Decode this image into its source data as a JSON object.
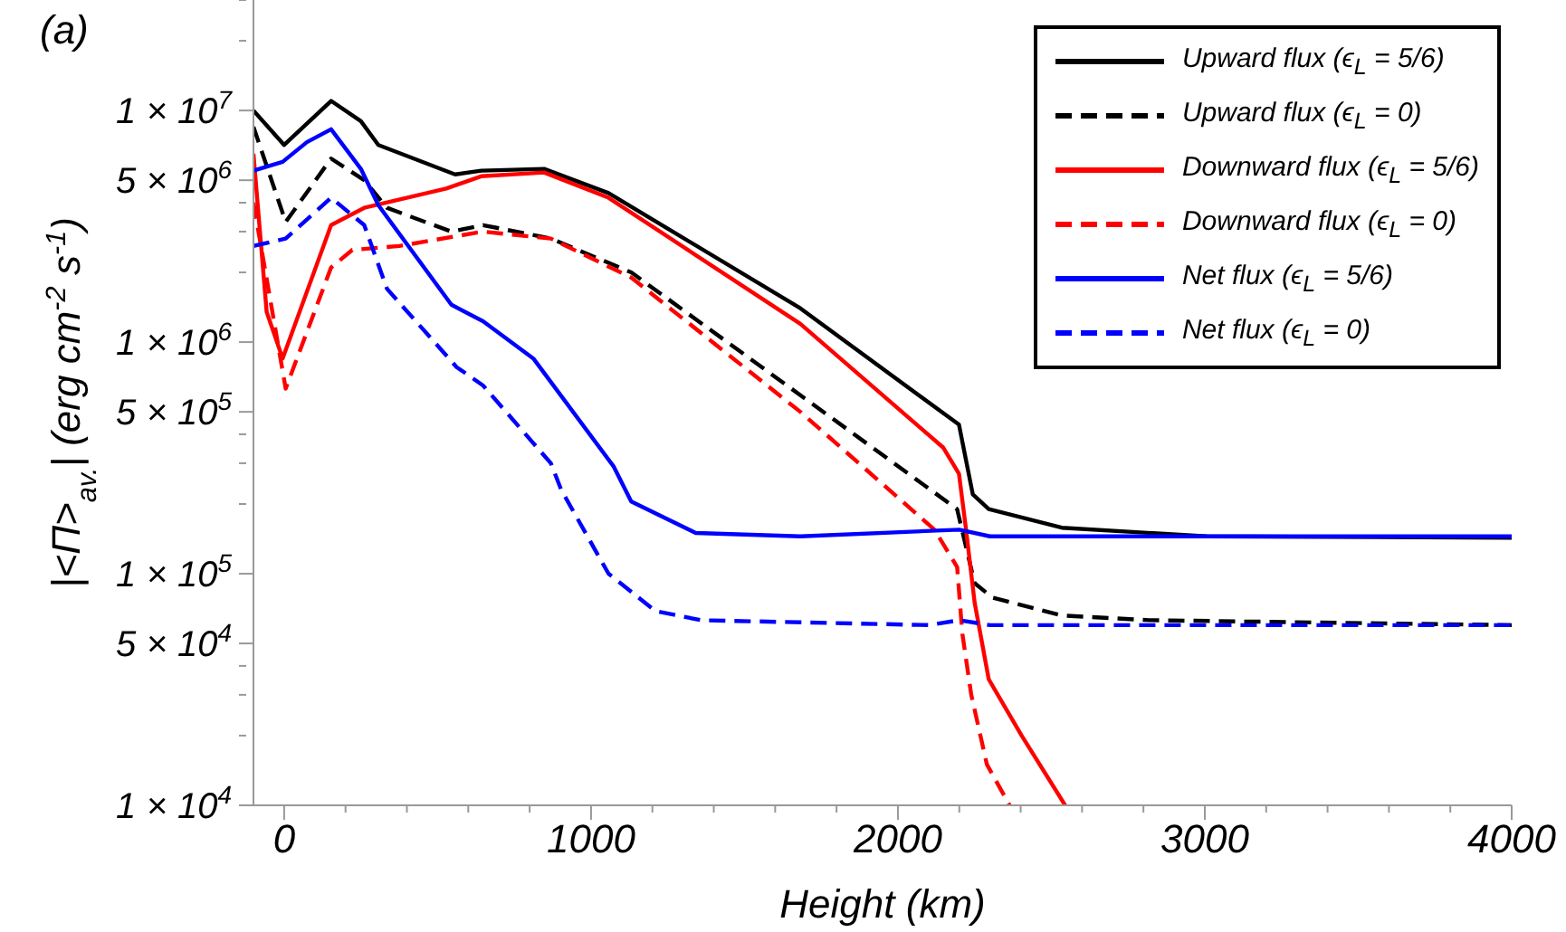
{
  "chart_data": {
    "type": "line",
    "title": "(a)",
    "xlabel": "Height (km)",
    "ylabel": "|<Π>$_{av.}$|  (erg cm$^{-2}$ s$^{-1}$)",
    "log": "y",
    "grid": false,
    "legend": "top right",
    "marker": "none",
    "xlim": [
      -100,
      4000
    ],
    "xticks": [
      0,
      {
        "value": 200,
        "label": null
      },
      {
        "value": 400,
        "label": null
      },
      {
        "value": 600,
        "label": null
      },
      {
        "value": 800,
        "label": null
      },
      1000,
      {
        "value": 1200,
        "label": null
      },
      {
        "value": 1400,
        "label": null
      },
      {
        "value": 1600,
        "label": null
      },
      {
        "value": 1800,
        "label": null
      },
      2000,
      {
        "value": 2200,
        "label": null
      },
      {
        "value": 2400,
        "label": null
      },
      {
        "value": 2600,
        "label": null
      },
      {
        "value": 2800,
        "label": null
      },
      3000,
      {
        "value": 3200,
        "label": null
      },
      {
        "value": 3400,
        "label": null
      },
      {
        "value": 3600,
        "label": null
      },
      {
        "value": 3800,
        "label": null
      },
      4000
    ],
    "ylim": [
      10000,
      30000000
    ],
    "yticks": [
      {
        "value": 10000,
        "label": "1 × 10$^{4}$"
      },
      {
        "value": 20000,
        "label": null
      },
      {
        "value": 30000,
        "label": null
      },
      {
        "value": 40000,
        "label": null
      },
      {
        "value": 50000,
        "label": "5 × 10$^{4}$"
      },
      {
        "value": 100000,
        "label": "1 × 10$^{5}$"
      },
      {
        "value": 200000,
        "label": null
      },
      {
        "value": 300000,
        "label": null
      },
      {
        "value": 400000,
        "label": null
      },
      {
        "value": 500000,
        "label": "5 × 10$^{5}$"
      },
      {
        "value": 1000000,
        "label": "1 × 10$^{6}$"
      },
      {
        "value": 2000000,
        "label": null
      },
      {
        "value": 3000000,
        "label": null
      },
      {
        "value": 4000000,
        "label": null
      },
      {
        "value": 5000000,
        "label": "5 × 10$^{6}$"
      },
      {
        "value": 10000000,
        "label": "1 × 10$^{7}$"
      },
      {
        "value": 20000000,
        "label": null
      },
      {
        "value": 30000000,
        "label": null
      }
    ],
    "series": [
      {
        "name": "Upward flux (ϵ$_{L}$ = 5/6)",
        "color": "#000000",
        "line_style": "solid",
        "x": [
          -100,
          0,
          153,
          250,
          307,
          557,
          642,
          847,
          1057,
          1682,
          2199,
          2244,
          2296,
          2534,
          3006,
          4000
        ],
        "values": [
          10000000,
          7100000,
          11000000,
          9000000,
          7100000,
          5300000,
          5500000,
          5600000,
          4400000,
          1400000,
          440000,
          220000,
          190000,
          158000,
          145000,
          143000
        ]
      },
      {
        "name": "Upward flux (ϵ$_{L}$ = 0)",
        "color": "#000000",
        "line_style": "dashed",
        "x": [
          -100,
          5,
          153,
          261,
          335,
          545,
          648,
          869,
          1131,
          1682,
          2193,
          2250,
          2307,
          2534,
          2818,
          4000
        ],
        "values": [
          8500000,
          3300000,
          6200000,
          5000000,
          3800000,
          3000000,
          3200000,
          2800000,
          2000000,
          590000,
          190000,
          91000,
          79000,
          66000,
          63000,
          60000
        ]
      },
      {
        "name": "Downward flux (ϵ$_{L}$ = 5/6)",
        "color": "#ff0000",
        "line_style": "solid",
        "x": [
          -100,
          -57,
          -5,
          153,
          261,
          528,
          642,
          847,
          1057,
          1682,
          2148,
          2199,
          2222,
          2250,
          2296,
          2403,
          2545
        ],
        "values": [
          6500000,
          1350000,
          850000,
          3200000,
          3800000,
          4600000,
          5200000,
          5400000,
          4200000,
          1200000,
          350000,
          270000,
          155000,
          75000,
          35000,
          20000,
          10000
        ]
      },
      {
        "name": "Downward flux (ϵ$_{L}$ = 0)",
        "color": "#ff0000",
        "line_style": "dashed",
        "x": [
          -100,
          5,
          153,
          222,
          375,
          648,
          869,
          1131,
          1682,
          2119,
          2193,
          2210,
          2239,
          2290,
          2364
        ],
        "values": [
          4000000,
          630000,
          2100000,
          2500000,
          2600000,
          3000000,
          2800000,
          1900000,
          500000,
          155000,
          107000,
          55000,
          30000,
          15000,
          10000
        ]
      },
      {
        "name": "Net flux (ϵ$_{L}$ = 5/6)",
        "color": "#0000ff",
        "line_style": "solid",
        "x": [
          -100,
          -5,
          74,
          153,
          250,
          307,
          545,
          648,
          812,
          1074,
          1131,
          1341,
          1682,
          2200,
          2300,
          4000
        ],
        "values": [
          5500000,
          6000000,
          7300000,
          8300000,
          5600000,
          3900000,
          1450000,
          1230000,
          850000,
          290000,
          205000,
          150000,
          145000,
          155000,
          145000,
          145000
        ]
      },
      {
        "name": "Net flux (ϵ$_{L}$ = 0)",
        "color": "#0000ff",
        "line_style": "dashed",
        "x": [
          -100,
          5,
          153,
          261,
          335,
          562,
          648,
          869,
          903,
          1057,
          1210,
          1358,
          2100,
          2200,
          2300,
          4000
        ],
        "values": [
          2600000,
          2800000,
          4200000,
          3200000,
          1700000,
          780000,
          650000,
          300000,
          230000,
          100000,
          69000,
          63000,
          60000,
          63000,
          60000,
          60000
        ]
      }
    ]
  }
}
